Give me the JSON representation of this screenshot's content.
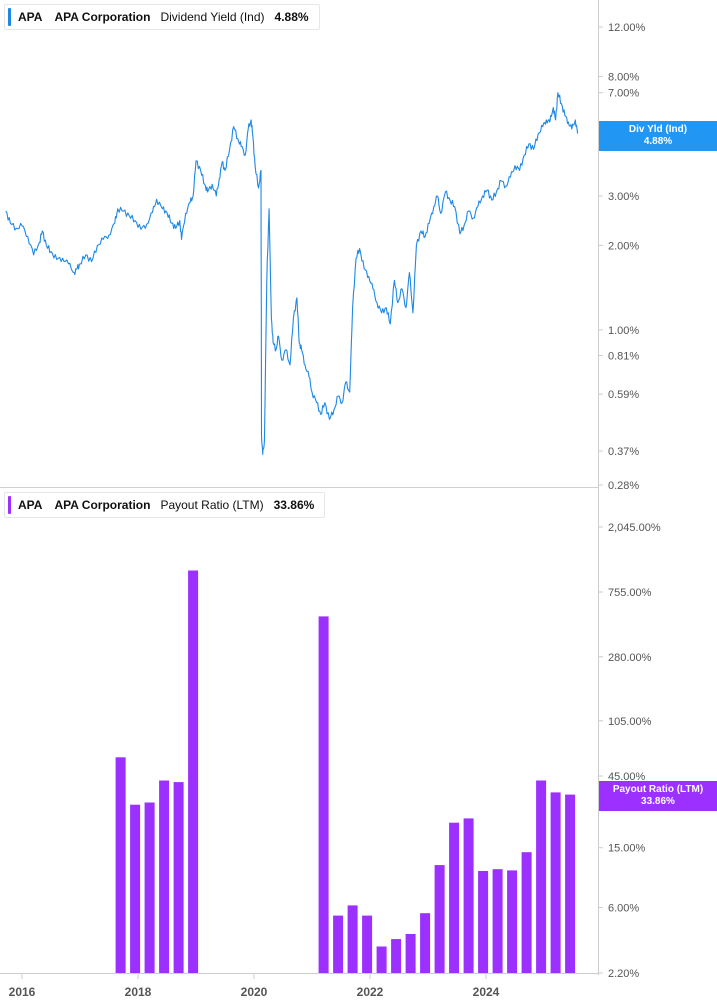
{
  "top_legend": {
    "ticker": "APA",
    "company": "APA Corporation",
    "metric": "Dividend Yield (Ind)",
    "value": "4.88%"
  },
  "bottom_legend": {
    "ticker": "APA",
    "company": "APA Corporation",
    "metric": "Payout Ratio (LTM)",
    "value": "33.86%"
  },
  "top_tag": {
    "label": "Div Yld (Ind)",
    "value": "4.88%"
  },
  "bottom_tag": {
    "label": "Payout Ratio (LTM)",
    "value": "33.86%"
  },
  "colors": {
    "yield": "#1e88e5",
    "payout": "#9b30ff",
    "tag_blue": "#2196f3",
    "axis": "#cccccc",
    "text": "#555555"
  },
  "chart_data": [
    {
      "type": "line",
      "scale": "log",
      "ylim": [
        0.0028,
        0.14
      ],
      "y_ticks": [
        {
          "v": 0.12,
          "label": "12.00%"
        },
        {
          "v": 0.08,
          "label": "8.00%"
        },
        {
          "v": 0.07,
          "label": "7.00%"
        },
        {
          "v": 0.03,
          "label": "3.00%"
        },
        {
          "v": 0.02,
          "label": "2.00%"
        },
        {
          "v": 0.01,
          "label": "1.00%"
        },
        {
          "v": 0.0081,
          "label": "0.81%"
        },
        {
          "v": 0.0059,
          "label": "0.59%"
        },
        {
          "v": 0.0037,
          "label": "0.37%"
        },
        {
          "v": 0.0028,
          "label": "0.28%"
        }
      ],
      "series": [
        {
          "points": [
            [
              2015.72,
              0.0265
            ],
            [
              2015.8,
              0.024
            ],
            [
              2015.9,
              0.023
            ],
            [
              2016.0,
              0.0235
            ],
            [
              2016.1,
              0.0215
            ],
            [
              2016.2,
              0.0185
            ],
            [
              2016.3,
              0.0205
            ],
            [
              2016.35,
              0.0225
            ],
            [
              2016.42,
              0.02
            ],
            [
              2016.5,
              0.019
            ],
            [
              2016.6,
              0.0178
            ],
            [
              2016.7,
              0.018
            ],
            [
              2016.8,
              0.0172
            ],
            [
              2016.9,
              0.016
            ],
            [
              2016.95,
              0.0165
            ],
            [
              2017.0,
              0.0172
            ],
            [
              2017.1,
              0.0185
            ],
            [
              2017.2,
              0.0175
            ],
            [
              2017.3,
              0.02
            ],
            [
              2017.4,
              0.021
            ],
            [
              2017.5,
              0.0218
            ],
            [
              2017.6,
              0.024
            ],
            [
              2017.65,
              0.027
            ],
            [
              2017.75,
              0.0265
            ],
            [
              2017.85,
              0.0255
            ],
            [
              2017.95,
              0.0245
            ],
            [
              2018.05,
              0.0228
            ],
            [
              2018.15,
              0.0238
            ],
            [
              2018.25,
              0.0262
            ],
            [
              2018.32,
              0.0292
            ],
            [
              2018.42,
              0.027
            ],
            [
              2018.5,
              0.0262
            ],
            [
              2018.58,
              0.024
            ],
            [
              2018.65,
              0.023
            ],
            [
              2018.72,
              0.0245
            ],
            [
              2018.75,
              0.021
            ],
            [
              2018.82,
              0.026
            ],
            [
              2018.9,
              0.0285
            ],
            [
              2018.95,
              0.03
            ],
            [
              2019.0,
              0.04
            ],
            [
              2019.08,
              0.037
            ],
            [
              2019.15,
              0.033
            ],
            [
              2019.2,
              0.031
            ],
            [
              2019.28,
              0.033
            ],
            [
              2019.35,
              0.03
            ],
            [
              2019.4,
              0.0345
            ],
            [
              2019.45,
              0.0395
            ],
            [
              2019.5,
              0.037
            ],
            [
              2019.58,
              0.044
            ],
            [
              2019.65,
              0.053
            ],
            [
              2019.72,
              0.048
            ],
            [
              2019.78,
              0.045
            ],
            [
              2019.85,
              0.042
            ],
            [
              2019.9,
              0.052
            ],
            [
              2019.95,
              0.056
            ],
            [
              2019.98,
              0.049
            ],
            [
              2020.02,
              0.038
            ],
            [
              2020.08,
              0.032
            ],
            [
              2020.12,
              0.037
            ],
            [
              2020.13,
              0.0042
            ],
            [
              2020.15,
              0.0036
            ],
            [
              2020.18,
              0.004
            ],
            [
              2020.22,
              0.015
            ],
            [
              2020.26,
              0.027
            ],
            [
              2020.3,
              0.011
            ],
            [
              2020.33,
              0.009
            ],
            [
              2020.38,
              0.0085
            ],
            [
              2020.42,
              0.0095
            ],
            [
              2020.48,
              0.0078
            ],
            [
              2020.55,
              0.0085
            ],
            [
              2020.62,
              0.0075
            ],
            [
              2020.68,
              0.011
            ],
            [
              2020.74,
              0.013
            ],
            [
              2020.78,
              0.009
            ],
            [
              2020.82,
              0.0085
            ],
            [
              2020.88,
              0.0075
            ],
            [
              2020.95,
              0.0068
            ],
            [
              2021.0,
              0.006
            ],
            [
              2021.08,
              0.0055
            ],
            [
              2021.15,
              0.005
            ],
            [
              2021.22,
              0.0055
            ],
            [
              2021.3,
              0.0048
            ],
            [
              2021.38,
              0.0052
            ],
            [
              2021.45,
              0.0058
            ],
            [
              2021.52,
              0.0055
            ],
            [
              2021.58,
              0.0065
            ],
            [
              2021.65,
              0.006
            ],
            [
              2021.7,
              0.012
            ],
            [
              2021.76,
              0.018
            ],
            [
              2021.82,
              0.0195
            ],
            [
              2021.9,
              0.0165
            ],
            [
              2021.98,
              0.0155
            ],
            [
              2022.05,
              0.014
            ],
            [
              2022.12,
              0.0125
            ],
            [
              2022.2,
              0.0115
            ],
            [
              2022.28,
              0.012
            ],
            [
              2022.35,
              0.0105
            ],
            [
              2022.42,
              0.015
            ],
            [
              2022.48,
              0.0125
            ],
            [
              2022.55,
              0.014
            ],
            [
              2022.62,
              0.012
            ],
            [
              2022.68,
              0.016
            ],
            [
              2022.74,
              0.0115
            ],
            [
              2022.8,
              0.02
            ],
            [
              2022.88,
              0.0225
            ],
            [
              2022.95,
              0.0215
            ],
            [
              2023.02,
              0.024
            ],
            [
              2023.1,
              0.0275
            ],
            [
              2023.16,
              0.03
            ],
            [
              2023.22,
              0.026
            ],
            [
              2023.3,
              0.031
            ],
            [
              2023.38,
              0.029
            ],
            [
              2023.46,
              0.0275
            ],
            [
              2023.55,
              0.022
            ],
            [
              2023.62,
              0.0235
            ],
            [
              2023.7,
              0.0265
            ],
            [
              2023.78,
              0.025
            ],
            [
              2023.86,
              0.0275
            ],
            [
              2023.94,
              0.03
            ],
            [
              2024.02,
              0.0315
            ],
            [
              2024.1,
              0.029
            ],
            [
              2024.18,
              0.031
            ],
            [
              2024.26,
              0.034
            ],
            [
              2024.34,
              0.0325
            ],
            [
              2024.42,
              0.035
            ],
            [
              2024.5,
              0.0385
            ],
            [
              2024.58,
              0.037
            ],
            [
              2024.66,
              0.042
            ],
            [
              2024.74,
              0.046
            ],
            [
              2024.82,
              0.044
            ],
            [
              2024.9,
              0.05
            ],
            [
              2024.98,
              0.053
            ],
            [
              2025.04,
              0.056
            ],
            [
              2025.1,
              0.055
            ],
            [
              2025.16,
              0.062
            ],
            [
              2025.2,
              0.056
            ],
            [
              2025.24,
              0.07
            ],
            [
              2025.3,
              0.064
            ],
            [
              2025.36,
              0.058
            ],
            [
              2025.42,
              0.055
            ],
            [
              2025.48,
              0.052
            ],
            [
              2025.54,
              0.056
            ],
            [
              2025.58,
              0.05
            ]
          ]
        }
      ]
    },
    {
      "type": "bar",
      "scale": "log",
      "ylim": [
        0.022,
        40.0
      ],
      "y_ticks": [
        {
          "v": 20.45,
          "label": "2,045.00%"
        },
        {
          "v": 7.55,
          "label": "755.00%"
        },
        {
          "v": 2.8,
          "label": "280.00%"
        },
        {
          "v": 1.05,
          "label": "105.00%"
        },
        {
          "v": 0.45,
          "label": "45.00%"
        },
        {
          "v": 0.15,
          "label": "15.00%"
        },
        {
          "v": 0.06,
          "label": "6.00%"
        },
        {
          "v": 0.022,
          "label": "2.20%"
        }
      ],
      "x_ticks": [
        {
          "v": 2016.0,
          "label": "2016"
        },
        {
          "v": 2018.0,
          "label": "2018"
        },
        {
          "v": 2020.0,
          "label": "2020"
        },
        {
          "v": 2022.0,
          "label": "2022"
        },
        {
          "v": 2024.0,
          "label": "2024"
        }
      ],
      "bars": [
        {
          "date": 2017.7,
          "value": 0.6
        },
        {
          "date": 2017.95,
          "value": 0.29
        },
        {
          "date": 2018.2,
          "value": 0.3
        },
        {
          "date": 2018.45,
          "value": 0.42
        },
        {
          "date": 2018.7,
          "value": 0.41
        },
        {
          "date": 2018.95,
          "value": 10.5
        },
        {
          "date": 2021.2,
          "value": 5.2
        },
        {
          "date": 2021.45,
          "value": 0.053
        },
        {
          "date": 2021.7,
          "value": 0.062
        },
        {
          "date": 2021.95,
          "value": 0.053
        },
        {
          "date": 2022.2,
          "value": 0.033
        },
        {
          "date": 2022.45,
          "value": 0.037
        },
        {
          "date": 2022.7,
          "value": 0.04
        },
        {
          "date": 2022.95,
          "value": 0.055
        },
        {
          "date": 2023.2,
          "value": 0.115
        },
        {
          "date": 2023.45,
          "value": 0.22
        },
        {
          "date": 2023.7,
          "value": 0.235
        },
        {
          "date": 2023.95,
          "value": 0.105
        },
        {
          "date": 2024.2,
          "value": 0.108
        },
        {
          "date": 2024.45,
          "value": 0.106
        },
        {
          "date": 2024.7,
          "value": 0.14
        },
        {
          "date": 2024.95,
          "value": 0.42
        },
        {
          "date": 2025.2,
          "value": 0.35
        },
        {
          "date": 2025.45,
          "value": 0.3386
        }
      ]
    }
  ]
}
